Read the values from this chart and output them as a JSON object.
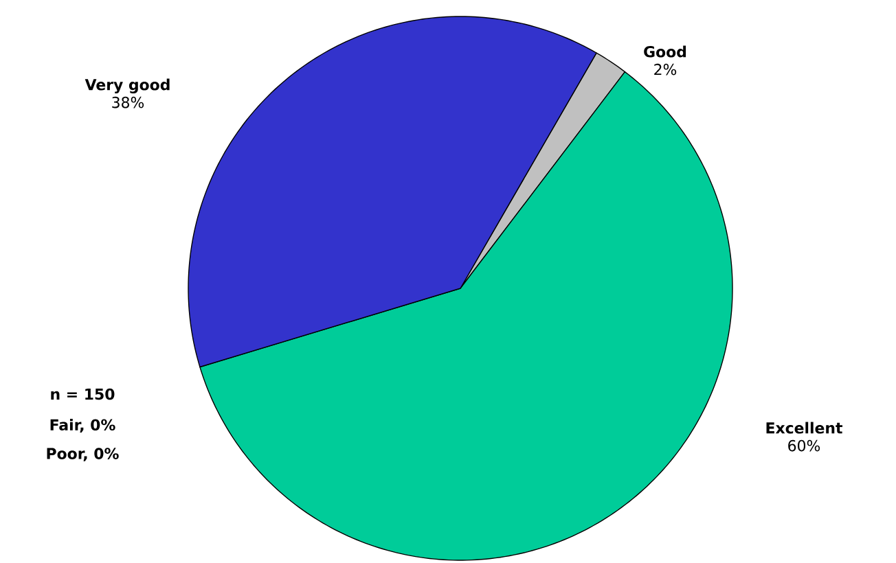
{
  "chart_data": {
    "type": "pie",
    "categories": [
      "Good",
      "Excellent",
      "Very good"
    ],
    "values": [
      2,
      60,
      38
    ],
    "colors": [
      "#c0c0c0",
      "#00cc99",
      "#3333cc"
    ],
    "value_labels": [
      "2%",
      "60%",
      "38%"
    ],
    "annotations": [
      "n = 150",
      "Fair, 0%",
      "Poor, 0%"
    ]
  }
}
